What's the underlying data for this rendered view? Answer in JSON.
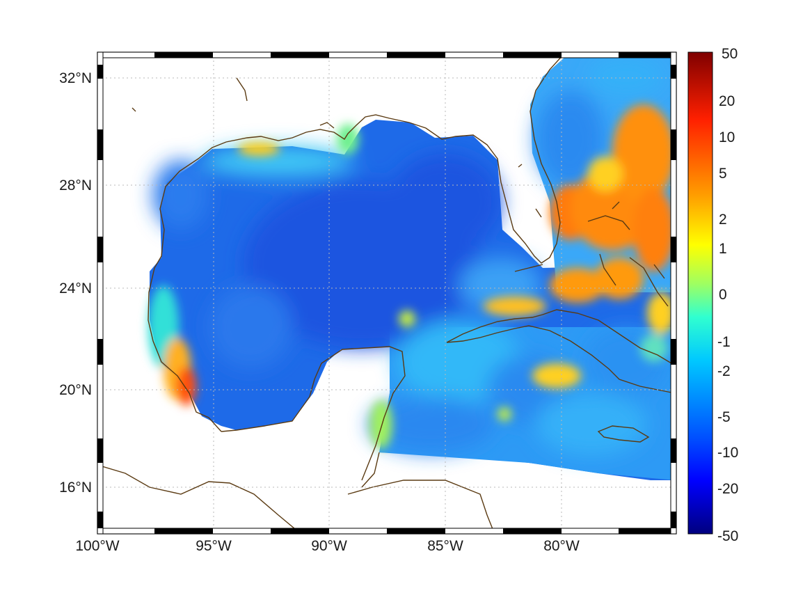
{
  "map": {
    "x_ticks": [
      "100°W",
      "95°W",
      "90°W",
      "85°W",
      "80°W"
    ],
    "y_ticks": [
      "32°N",
      "28°N",
      "24°N",
      "20°N",
      "16°N"
    ],
    "lon_range": [
      -100,
      -75
    ],
    "lat_range": [
      14.3,
      33
    ],
    "grid": true,
    "frame": "black-white checkered"
  },
  "colorbar": {
    "labels": [
      "50",
      "20",
      "10",
      "5",
      "2",
      "1",
      "0",
      "-1",
      "-2",
      "-5",
      "-10",
      "-20",
      "-50"
    ],
    "colormap": "jet",
    "range": [
      -50,
      50
    ]
  },
  "colors": {
    "coastline": "#5a3a12",
    "deep_blue": "#1a5ae0",
    "cyan": "#19d6f0",
    "orange": "#ff8a10",
    "red": "#c81010"
  }
}
